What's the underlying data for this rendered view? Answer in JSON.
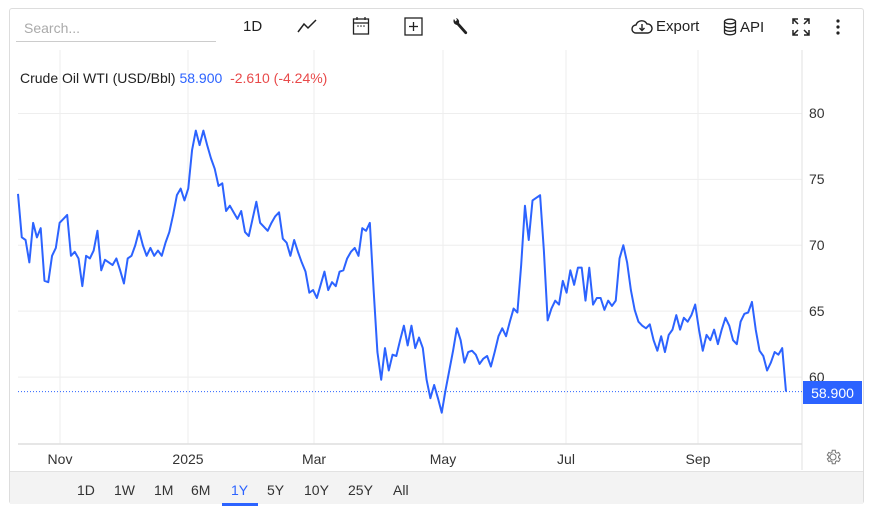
{
  "toolbar": {
    "search_placeholder": "Search...",
    "interval_label": "1D",
    "export_label": "Export",
    "api_label": "API"
  },
  "header": {
    "title": "Crude Oil WTI (USD/Bbl)",
    "price": "58.900",
    "change": "-2.610 (-4.24%)"
  },
  "ranges": [
    "1D",
    "1W",
    "1M",
    "6M",
    "1Y",
    "5Y",
    "10Y",
    "25Y",
    "All"
  ],
  "active_range": "1Y",
  "colors": {
    "accent": "#2c63ff",
    "negative": "#e84a4a"
  },
  "chart_data": {
    "type": "line",
    "title": "Crude Oil WTI (USD/Bbl)",
    "x_tick_labels": [
      "Nov",
      "2025",
      "Mar",
      "May",
      "Jul",
      "Sep"
    ],
    "y_tick_labels": [
      "80",
      "75",
      "70",
      "65",
      "60"
    ],
    "y_ticks": [
      80,
      75,
      70,
      65,
      60
    ],
    "ylim": [
      55,
      81.4
    ],
    "grid": true,
    "last_value_label": "58.900",
    "last_value": 58.9,
    "series": [
      {
        "name": "Crude Oil WTI",
        "color": "#2c63ff",
        "values": [
          73.9,
          70.6,
          70.4,
          68.7,
          71.7,
          70.6,
          71.3,
          67.3,
          67.2,
          69.2,
          69.8,
          71.7,
          72.0,
          72.3,
          69.2,
          69.5,
          69.0,
          66.9,
          69.2,
          69.0,
          69.6,
          71.1,
          68.1,
          68.9,
          68.7,
          68.5,
          69.0,
          68.1,
          67.1,
          69.0,
          69.2,
          70.0,
          71.1,
          70.0,
          69.2,
          69.8,
          69.2,
          69.6,
          69.2,
          70.2,
          71.0,
          72.3,
          73.8,
          74.3,
          73.4,
          74.3,
          77.2,
          78.7,
          77.6,
          78.7,
          77.6,
          76.6,
          75.8,
          74.5,
          74.7,
          72.6,
          73.0,
          72.5,
          72.0,
          72.6,
          71.0,
          70.7,
          72.0,
          73.3,
          71.7,
          71.4,
          71.1,
          71.7,
          72.2,
          72.5,
          70.5,
          70.2,
          69.2,
          70.4,
          69.5,
          68.7,
          68.0,
          66.4,
          66.6,
          66.0,
          67.0,
          68.0,
          66.6,
          67.2,
          66.9,
          68.0,
          68.1,
          69.0,
          69.5,
          69.8,
          69.2,
          71.3,
          71.1,
          71.7,
          66.6,
          61.9,
          59.8,
          62.2,
          60.5,
          61.7,
          61.6,
          62.8,
          63.9,
          62.4,
          63.9,
          62.2,
          63.0,
          62.2,
          59.8,
          58.4,
          59.4,
          58.4,
          57.3,
          59.0,
          60.5,
          62.0,
          63.7,
          62.8,
          61.1,
          61.9,
          62.0,
          61.7,
          61.0,
          61.4,
          61.6,
          60.8,
          61.9,
          63.1,
          63.7,
          63.1,
          64.2,
          65.2,
          64.9,
          68.5,
          73.0,
          70.4,
          73.4,
          73.6,
          73.8,
          69.6,
          64.3,
          65.2,
          65.8,
          65.5,
          67.3,
          66.4,
          68.1,
          67.0,
          68.3,
          68.3,
          65.8,
          68.3,
          65.5,
          66.0,
          66.0,
          65.1,
          65.8,
          65.4,
          65.8,
          69.0,
          70.0,
          68.7,
          66.6,
          65.1,
          64.2,
          63.9,
          63.7,
          64.0,
          62.8,
          62.0,
          63.1,
          61.9,
          63.2,
          63.6,
          64.7,
          63.6,
          64.5,
          64.2,
          64.7,
          65.5,
          63.6,
          62.0,
          63.2,
          62.8,
          63.6,
          62.5,
          63.6,
          64.5,
          63.9,
          62.8,
          62.5,
          64.2,
          64.8,
          64.9,
          65.7,
          63.6,
          62.0,
          61.6,
          60.5,
          61.1,
          61.9,
          61.7,
          62.2,
          58.9
        ]
      }
    ]
  }
}
